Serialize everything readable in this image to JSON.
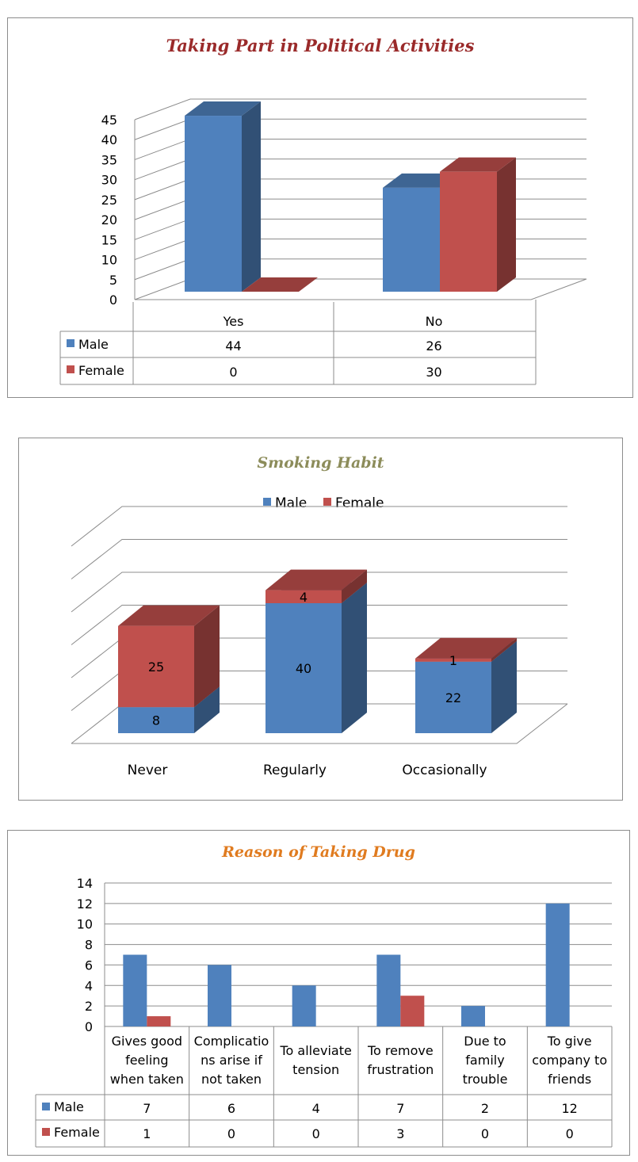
{
  "charts": {
    "political": {
      "title": "Taking Part in Political Activities",
      "title_color": "#9a2a2a"
    },
    "smoking": {
      "title": "Smoking Habit",
      "title_color": "#8c8c5a"
    },
    "drug": {
      "title": "Reason of Taking Drug",
      "title_color": "#e07b1f"
    }
  },
  "colors": {
    "male": "#4f81bd",
    "female": "#c0504d"
  },
  "chart_data": [
    {
      "type": "bar",
      "title": "Taking Part in Political Activities",
      "categories": [
        "Yes",
        "No"
      ],
      "series": [
        {
          "name": "Male",
          "values": [
            44,
            26
          ]
        },
        {
          "name": "Female",
          "values": [
            0,
            30
          ]
        }
      ],
      "ylim": [
        0,
        45
      ],
      "yticks": [
        0,
        5,
        10,
        15,
        20,
        25,
        30,
        35,
        40,
        45
      ],
      "grid": true,
      "legend": "data-table"
    },
    {
      "type": "bar",
      "stacked": true,
      "title": "Smoking Habit",
      "categories": [
        "Never",
        "Regularly",
        "Occasionally"
      ],
      "series": [
        {
          "name": "Male",
          "values": [
            8,
            40,
            22
          ]
        },
        {
          "name": "Female",
          "values": [
            25,
            4,
            1
          ]
        }
      ],
      "ylim": [
        0,
        50
      ],
      "grid": true,
      "legend": "top"
    },
    {
      "type": "bar",
      "title": "Reason of Taking Drug",
      "categories": [
        [
          "Gives good",
          "feeling",
          "when taken"
        ],
        [
          "Complicatio",
          "ns arise if",
          "not taken"
        ],
        [
          "To alleviate",
          "tension"
        ],
        [
          "To remove",
          "frustration"
        ],
        [
          "Due to",
          "family",
          "trouble"
        ],
        [
          "To give",
          "company to",
          "friends"
        ]
      ],
      "series": [
        {
          "name": "Male",
          "values": [
            7,
            6,
            4,
            7,
            2,
            12
          ]
        },
        {
          "name": "Female",
          "values": [
            1,
            0,
            0,
            3,
            0,
            0
          ]
        }
      ],
      "ylim": [
        0,
        14
      ],
      "yticks": [
        0,
        2,
        4,
        6,
        8,
        10,
        12,
        14
      ],
      "grid": true,
      "legend": "data-table"
    }
  ]
}
